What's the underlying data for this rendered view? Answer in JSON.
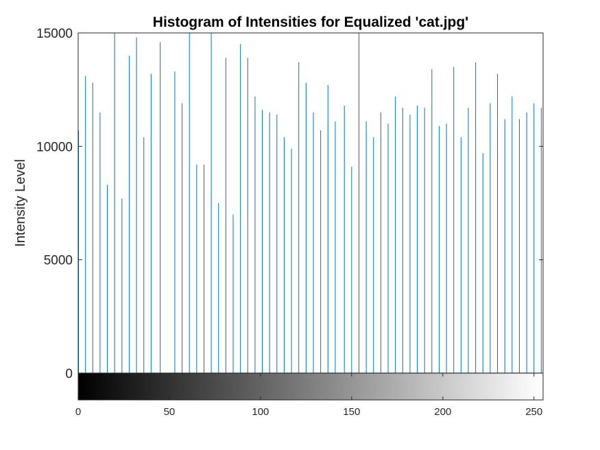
{
  "chart_data": {
    "type": "bar",
    "title": "Histogram of Intensities for Equalized 'cat.jpg'",
    "xlabel": "",
    "ylabel": "Intensity Level",
    "xlim": [
      0,
      255
    ],
    "ylim": [
      0,
      15000
    ],
    "x_ticks": [
      "0",
      "50",
      "100",
      "150",
      "200",
      "250"
    ],
    "y_ticks": [
      "0",
      "5000",
      "10000",
      "15000"
    ],
    "grid": false,
    "legend": "none",
    "colorbar": "grayscale gradient from 0 (black) to 255 (white) beneath the axes",
    "colors": {
      "stem": "#0072BD",
      "axis": "#262626",
      "colorbar_start": "#000000",
      "colorbar_end": "#ffffff"
    },
    "x": [
      0,
      4,
      8,
      12,
      16,
      20,
      24,
      28,
      32,
      36,
      40,
      45,
      53,
      57,
      61,
      65,
      69,
      73,
      77,
      81,
      85,
      89,
      93,
      97,
      101,
      105,
      109,
      113,
      117,
      121,
      125,
      129,
      133,
      137,
      141,
      146,
      150,
      154,
      158,
      162,
      166,
      170,
      174,
      178,
      182,
      186,
      190,
      194,
      198,
      202,
      206,
      210,
      214,
      218,
      222,
      226,
      230,
      234,
      238,
      242,
      246,
      250,
      254
    ],
    "values": [
      10700,
      13100,
      12800,
      11500,
      8300,
      15000,
      7700,
      14000,
      14800,
      10400,
      13200,
      14600,
      13300,
      11900,
      15000,
      9200,
      9200,
      15000,
      7500,
      13900,
      7000,
      14500,
      13900,
      12200,
      11600,
      11500,
      11400,
      10400,
      9900,
      13700,
      12800,
      11500,
      10700,
      12700,
      11100,
      11800,
      9100,
      15000,
      11100,
      10400,
      11500,
      11000,
      12200,
      11700,
      11400,
      11800,
      11700,
      13400,
      10900,
      11000,
      13500,
      10400,
      11700,
      13700,
      9700,
      11900,
      13200,
      11200,
      12200,
      11200,
      11500,
      11900,
      11700
    ]
  }
}
